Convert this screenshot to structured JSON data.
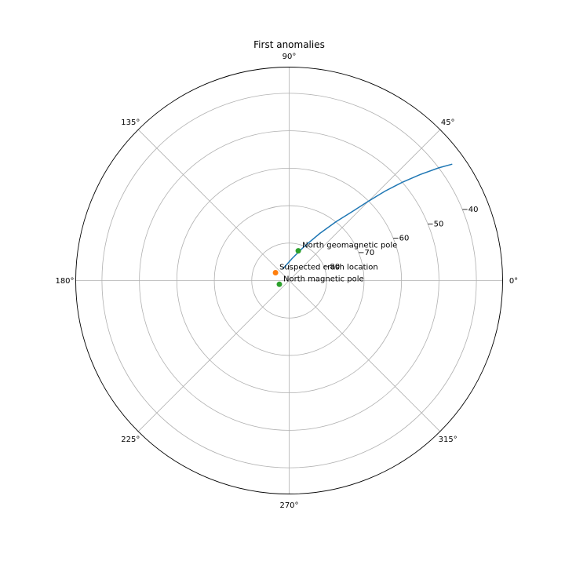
{
  "chart_data": {
    "type": "polar",
    "title": "First anomalies",
    "angular_ticks_deg": [
      0,
      45,
      90,
      135,
      180,
      225,
      270,
      315
    ],
    "angular_tick_labels": [
      "0°",
      "45°",
      "90°",
      "135°",
      "180°",
      "225°",
      "270°",
      "315°"
    ],
    "radial_axis": {
      "inner": -90,
      "outer": -33,
      "unit": "latitude (deg)"
    },
    "radial_ticks": [
      -80,
      -70,
      -60,
      -50,
      -40
    ],
    "radial_tick_labels": [
      "−80",
      "−70",
      "−60",
      "−50",
      "−40"
    ],
    "radial_label_angle_deg": 22.5,
    "grid": true,
    "series": [
      {
        "kind": "line",
        "color": "#1f77b4",
        "points": [
          {
            "theta": 120,
            "r": -86.5
          },
          {
            "theta": 82,
            "r": -84
          },
          {
            "theta": 66,
            "r": -80
          },
          {
            "theta": 57,
            "r": -75
          },
          {
            "theta": 51.5,
            "r": -70
          },
          {
            "theta": 47.5,
            "r": -65
          },
          {
            "theta": 45,
            "r": -60
          },
          {
            "theta": 43,
            "r": -55
          },
          {
            "theta": 41,
            "r": -50
          },
          {
            "theta": 39,
            "r": -45
          },
          {
            "theta": 37,
            "r": -40
          },
          {
            "theta": 35.5,
            "r": -36.5
          }
        ]
      }
    ],
    "points": [
      {
        "label": "Suspected crash location",
        "theta": 150,
        "r": -85.8,
        "color": "#ff7f0e"
      },
      {
        "label": "North geomagnetic pole",
        "theta": 73,
        "r": -81.7,
        "color": "#2ca02c"
      },
      {
        "label": "North magnetic pole",
        "theta": 201,
        "r": -87.2,
        "color": "#2ca02c"
      }
    ]
  }
}
